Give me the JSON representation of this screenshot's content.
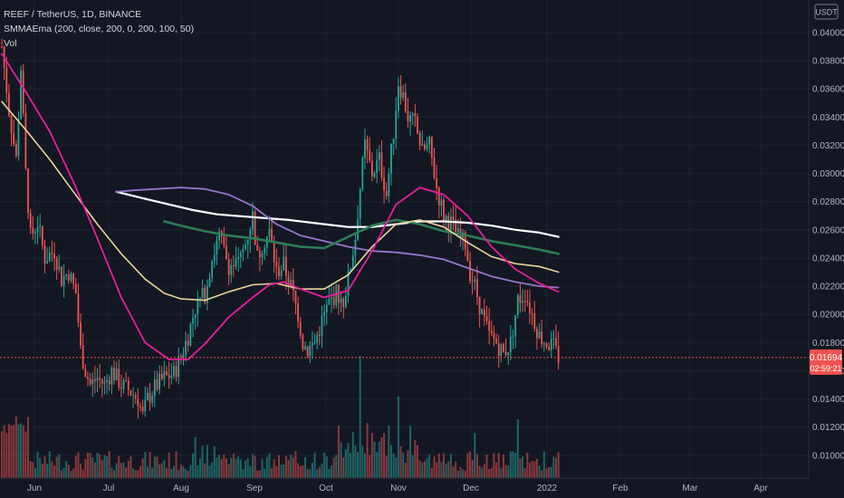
{
  "header": {
    "title": "REEF / TetherUS, 1D, BINANCE",
    "indicator": "SMMAEma (200, close, 200, 0, 200, 100, 50)",
    "volume_label": "Vol",
    "currency": "USDT"
  },
  "price_badge": {
    "price": "0.01694",
    "countdown": "02:59:21"
  },
  "colors": {
    "background": "#131722",
    "up": "#26a69a",
    "down": "#ef5350",
    "grid": "#1e222d",
    "smma200": "#ffffff",
    "ema200": "#9575cd",
    "ema100": "#e8d59a",
    "ema50": "#e91e9c",
    "green_avg": "#2e7d57"
  },
  "chart_data": {
    "type": "candlestick",
    "x_axis_labels": [
      "Jun",
      "Jul",
      "Aug",
      "Sep",
      "Oct",
      "Nov",
      "Dec",
      "2022",
      "Feb",
      "Mar",
      "Apr"
    ],
    "y_axis_labels": [
      "0.04000",
      "0.03800",
      "0.03600",
      "0.03400",
      "0.03200",
      "0.03000",
      "0.02800",
      "0.02600",
      "0.02400",
      "0.02200",
      "0.02000",
      "0.01800",
      "0.01600",
      "0.01400",
      "0.01200",
      "0.01000"
    ],
    "ylim": [
      0.0089,
      0.0416
    ],
    "last_price": 0.01694,
    "moving_averages": [
      {
        "key": "white",
        "color": "#ffffff",
        "width": 2.2,
        "points": [
          [
            48,
            0.0287
          ],
          [
            60,
            0.0282
          ],
          [
            70,
            0.0278
          ],
          [
            80,
            0.0274
          ],
          [
            90,
            0.0271
          ],
          [
            105,
            0.0269
          ],
          [
            120,
            0.0267
          ],
          [
            135,
            0.0264
          ],
          [
            145,
            0.0262
          ],
          [
            155,
            0.0262
          ],
          [
            165,
            0.0264
          ],
          [
            175,
            0.0266
          ],
          [
            185,
            0.0266
          ],
          [
            195,
            0.0265
          ],
          [
            205,
            0.0263
          ],
          [
            215,
            0.026
          ],
          [
            225,
            0.0258
          ],
          [
            233,
            0.0255
          ]
        ]
      },
      {
        "key": "purple",
        "color": "#9575cd",
        "width": 1.8,
        "points": [
          [
            48,
            0.0287
          ],
          [
            55,
            0.0288
          ],
          [
            65,
            0.0289
          ],
          [
            75,
            0.029
          ],
          [
            85,
            0.0289
          ],
          [
            95,
            0.0285
          ],
          [
            105,
            0.0277
          ],
          [
            115,
            0.0264
          ],
          [
            125,
            0.0256
          ],
          [
            135,
            0.0252
          ],
          [
            145,
            0.0248
          ],
          [
            155,
            0.0245
          ],
          [
            165,
            0.0244
          ],
          [
            175,
            0.0242
          ],
          [
            185,
            0.0239
          ],
          [
            195,
            0.0233
          ],
          [
            205,
            0.0227
          ],
          [
            215,
            0.0223
          ],
          [
            225,
            0.022
          ],
          [
            233,
            0.0219
          ]
        ]
      },
      {
        "key": "green",
        "color": "#2e7d57",
        "width": 2.6,
        "points": [
          [
            68,
            0.0266
          ],
          [
            75,
            0.0263
          ],
          [
            85,
            0.0259
          ],
          [
            95,
            0.0256
          ],
          [
            105,
            0.0254
          ],
          [
            115,
            0.0251
          ],
          [
            125,
            0.0248
          ],
          [
            135,
            0.0247
          ],
          [
            145,
            0.0255
          ],
          [
            155,
            0.0263
          ],
          [
            165,
            0.0267
          ],
          [
            175,
            0.0264
          ],
          [
            185,
            0.0259
          ],
          [
            195,
            0.0256
          ],
          [
            205,
            0.0252
          ],
          [
            215,
            0.0249
          ],
          [
            225,
            0.0246
          ],
          [
            233,
            0.0243
          ]
        ]
      },
      {
        "key": "beige",
        "color": "#e8d59a",
        "width": 1.6,
        "points": [
          [
            0,
            0.0351
          ],
          [
            10,
            0.0331
          ],
          [
            20,
            0.031
          ],
          [
            30,
            0.0287
          ],
          [
            40,
            0.0264
          ],
          [
            50,
            0.0243
          ],
          [
            60,
            0.0225
          ],
          [
            68,
            0.0215
          ],
          [
            75,
            0.0211
          ],
          [
            85,
            0.021
          ],
          [
            95,
            0.0216
          ],
          [
            105,
            0.0221
          ],
          [
            115,
            0.0222
          ],
          [
            125,
            0.0218
          ],
          [
            135,
            0.0218
          ],
          [
            145,
            0.0228
          ],
          [
            155,
            0.0248
          ],
          [
            165,
            0.0264
          ],
          [
            175,
            0.0267
          ],
          [
            185,
            0.0262
          ],
          [
            195,
            0.0251
          ],
          [
            205,
            0.0241
          ],
          [
            215,
            0.0236
          ],
          [
            225,
            0.0234
          ],
          [
            233,
            0.023
          ]
        ]
      },
      {
        "key": "magenta",
        "color": "#e91e9c",
        "width": 1.8,
        "points": [
          [
            0,
            0.0385
          ],
          [
            10,
            0.0358
          ],
          [
            20,
            0.033
          ],
          [
            30,
            0.0294
          ],
          [
            40,
            0.0254
          ],
          [
            50,
            0.0212
          ],
          [
            60,
            0.018
          ],
          [
            70,
            0.0168
          ],
          [
            78,
            0.0168
          ],
          [
            85,
            0.0179
          ],
          [
            95,
            0.0198
          ],
          [
            105,
            0.0212
          ],
          [
            112,
            0.0221
          ],
          [
            118,
            0.0223
          ],
          [
            125,
            0.0218
          ],
          [
            135,
            0.0212
          ],
          [
            145,
            0.0217
          ],
          [
            155,
            0.0245
          ],
          [
            165,
            0.0278
          ],
          [
            175,
            0.029
          ],
          [
            185,
            0.0285
          ],
          [
            195,
            0.027
          ],
          [
            205,
            0.0248
          ],
          [
            215,
            0.0232
          ],
          [
            225,
            0.0222
          ],
          [
            233,
            0.0216
          ]
        ]
      }
    ]
  }
}
